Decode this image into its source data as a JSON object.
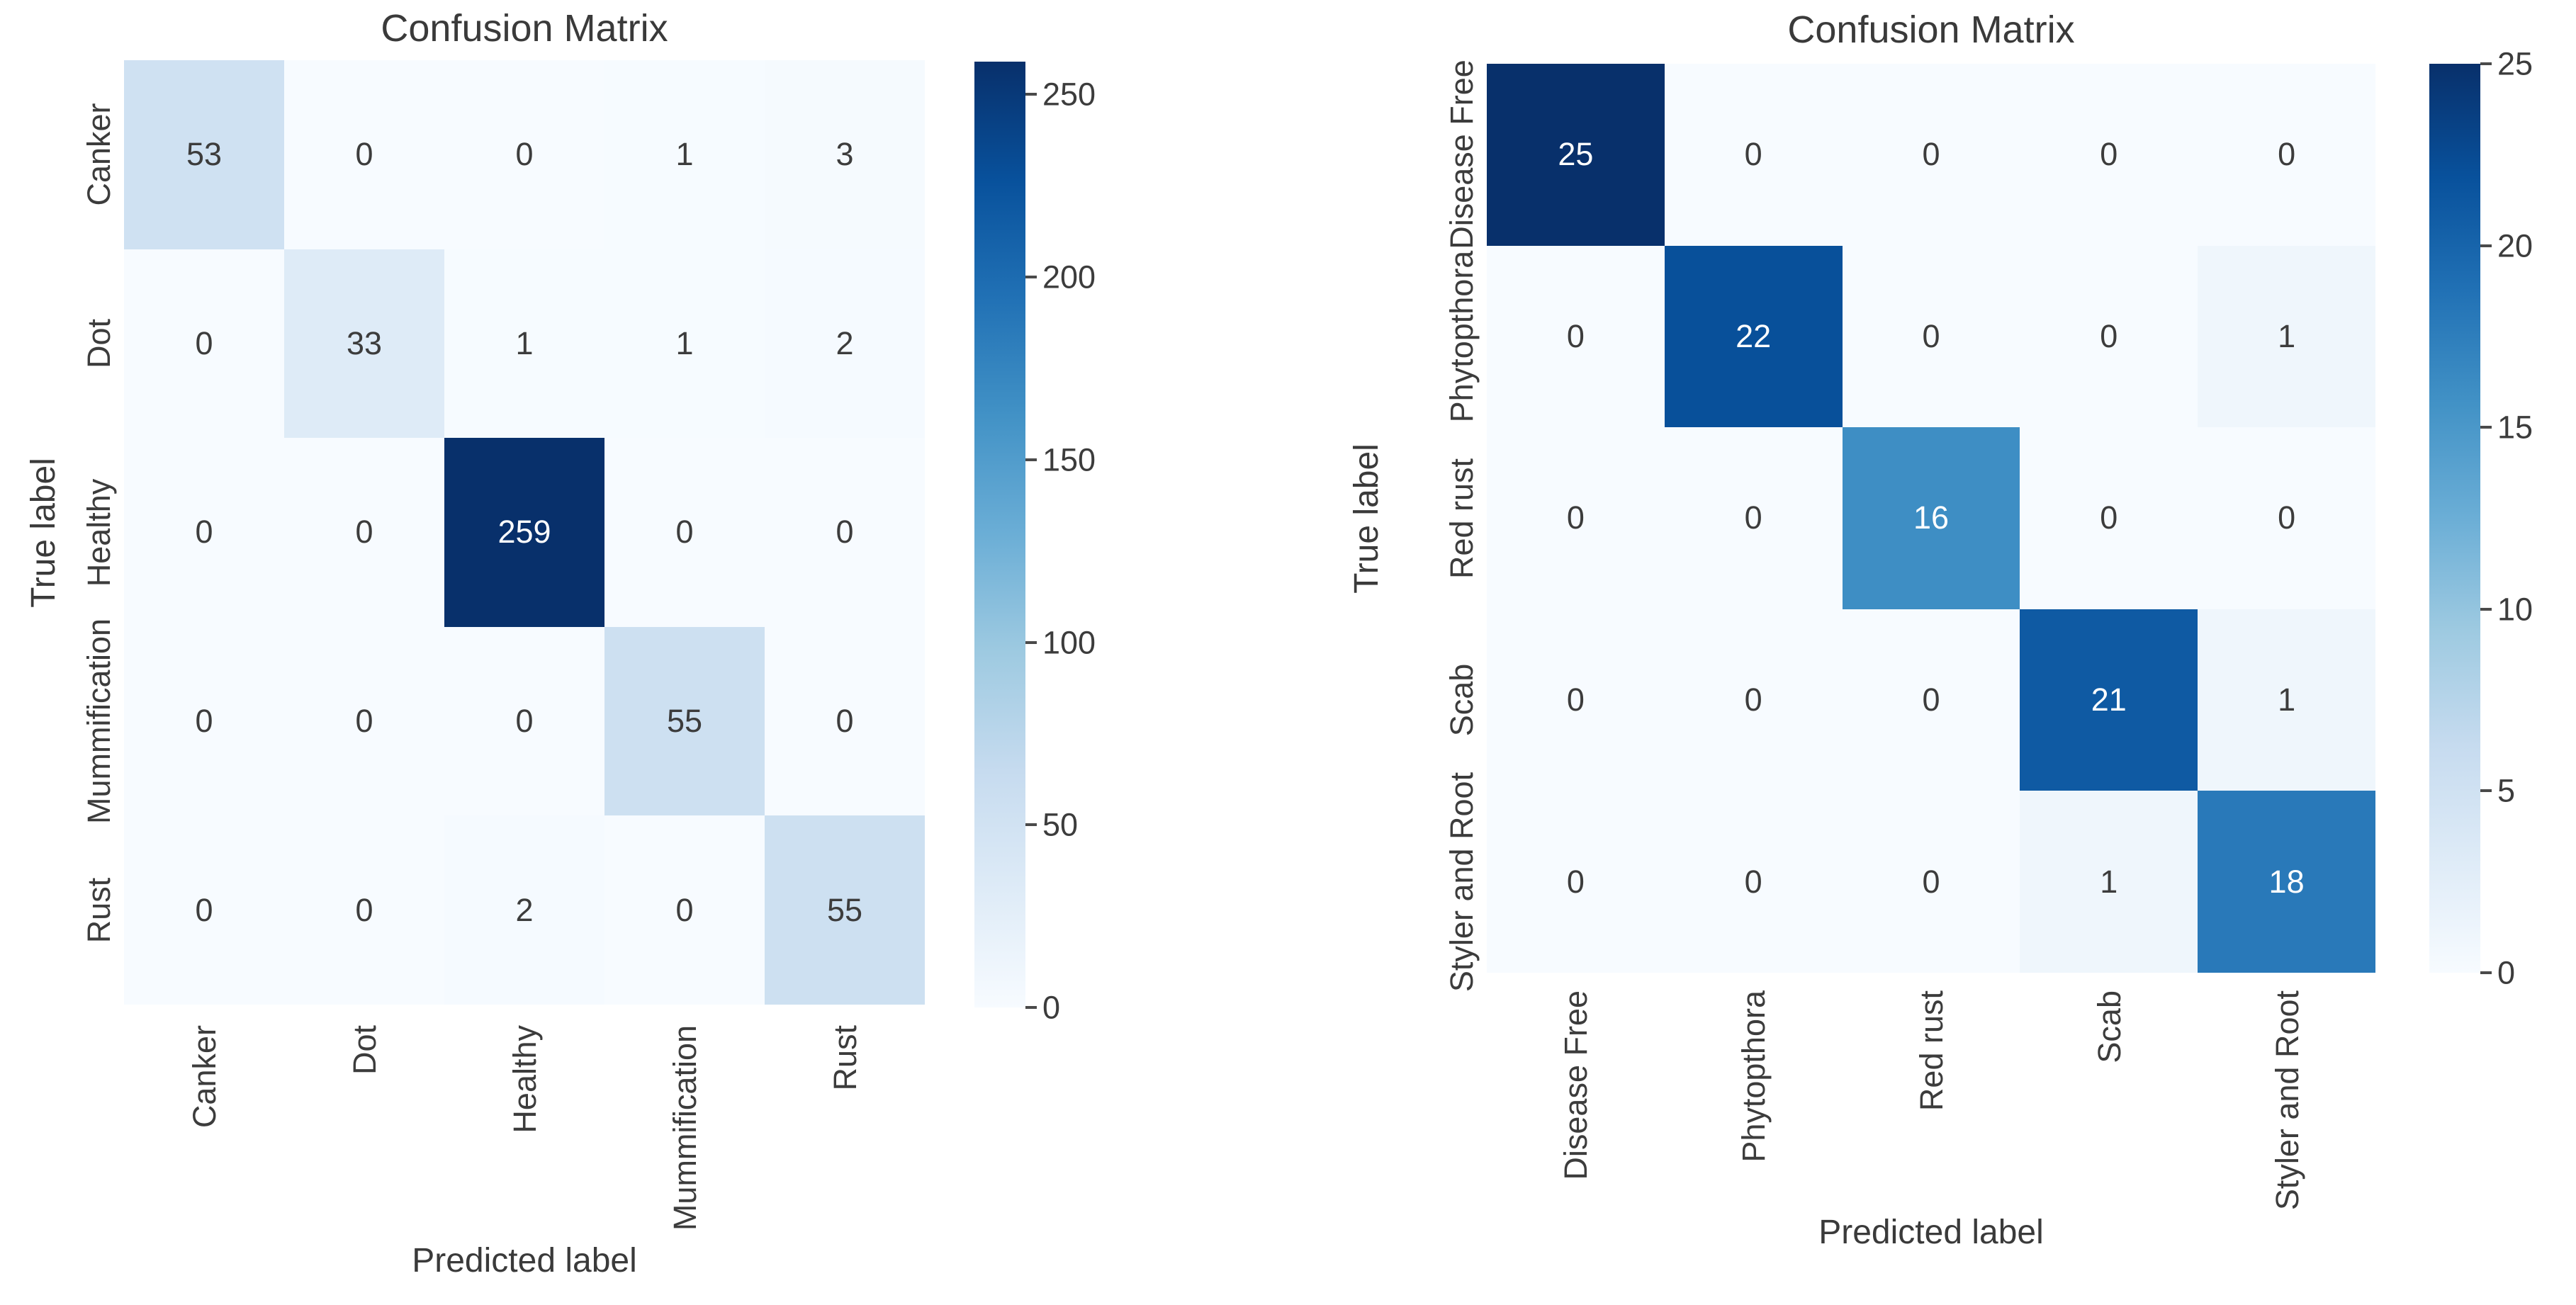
{
  "chart_data": [
    {
      "type": "heatmap",
      "title": "Confusion Matrix",
      "xlabel": "Predicted label",
      "ylabel": "True label",
      "x_categories": [
        "Canker",
        "Dot",
        "Healthy",
        "Mummification",
        "Rust"
      ],
      "y_categories": [
        "Canker",
        "Dot",
        "Healthy",
        "Mummification",
        "Rust"
      ],
      "matrix": [
        [
          53,
          0,
          0,
          1,
          3
        ],
        [
          0,
          33,
          1,
          1,
          2
        ],
        [
          0,
          0,
          259,
          0,
          0
        ],
        [
          0,
          0,
          0,
          55,
          0
        ],
        [
          0,
          0,
          2,
          0,
          55
        ]
      ],
      "vmin": 0,
      "vmax": 259,
      "colormap": "Blues",
      "colorbar_ticks": [
        0,
        50,
        100,
        150,
        200,
        250
      ],
      "legend_position": "right-colorbar",
      "grid": false
    },
    {
      "type": "heatmap",
      "title": "Confusion Matrix",
      "xlabel": "Predicted label",
      "ylabel": "True label",
      "x_categories": [
        "Disease Free",
        "Phytopthora",
        "Red rust",
        "Scab",
        "Styler and Root"
      ],
      "y_categories": [
        "Disease Free",
        "Phytopthora",
        "Red rust",
        "Scab",
        "Styler and Root"
      ],
      "matrix": [
        [
          25,
          0,
          0,
          0,
          0
        ],
        [
          0,
          22,
          0,
          0,
          1
        ],
        [
          0,
          0,
          16,
          0,
          0
        ],
        [
          0,
          0,
          0,
          21,
          1
        ],
        [
          0,
          0,
          0,
          1,
          18
        ]
      ],
      "vmin": 0,
      "vmax": 25,
      "colormap": "Blues",
      "colorbar_ticks": [
        0,
        5,
        10,
        15,
        20,
        25
      ],
      "legend_position": "right-colorbar",
      "grid": false
    }
  ],
  "colors": {
    "background": "#ffffff",
    "text_dark": "#3c3c3c",
    "cell_text_light": "#ffffff",
    "cmap_low": "#f7fbff",
    "cmap_high": "#08306b"
  }
}
